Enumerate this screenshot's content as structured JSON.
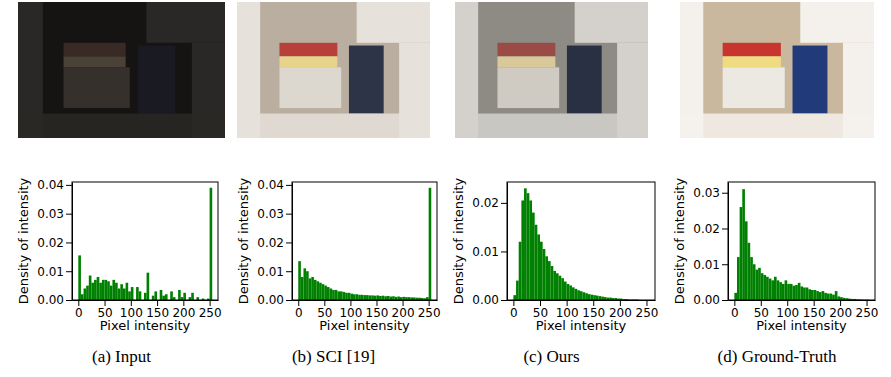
{
  "chart_data": [
    {
      "type": "histogram",
      "title": "(a) Input",
      "x_label": "Pixel intensity",
      "y_label": "Density of intensity",
      "color": "#008000",
      "bins": [
        0,
        5,
        10,
        15,
        20,
        25,
        30,
        35,
        40,
        45,
        50,
        55,
        60,
        65,
        70,
        75,
        80,
        85,
        90,
        95,
        100,
        105,
        110,
        115,
        120,
        125,
        130,
        135,
        140,
        145,
        150,
        155,
        160,
        165,
        170,
        175,
        180,
        185,
        190,
        195,
        200,
        205,
        210,
        215,
        220,
        225,
        230,
        235,
        240,
        245,
        250,
        255
      ],
      "values": [
        0.0155,
        0.002,
        0.004,
        0.005,
        0.0085,
        0.006,
        0.007,
        0.008,
        0.006,
        0.007,
        0.007,
        0.0065,
        0.005,
        0.007,
        0.006,
        0.004,
        0.0055,
        0.004,
        0.006,
        0.003,
        0.0045,
        0,
        0.0045,
        0.003,
        0,
        0.0025,
        0.0095,
        0,
        0.0015,
        0.003,
        0,
        0.0035,
        0.0015,
        0.002,
        0,
        0.003,
        0.001,
        0,
        0.0035,
        0.001,
        0.0025,
        0,
        0.001,
        0.0025,
        0,
        0.001,
        0,
        0.0005,
        0,
        0.0005,
        0.039
      ],
      "xlim": [
        -12,
        266
      ],
      "xticks": [
        0,
        50,
        100,
        150,
        200,
        250
      ],
      "ylim": [
        0,
        0.041
      ],
      "yticks": [
        {
          "value": 0,
          "label": "0.00"
        },
        {
          "value": 0.01,
          "label": "0.01"
        },
        {
          "value": 0.02,
          "label": "0.02"
        },
        {
          "value": 0.03,
          "label": "0.03"
        },
        {
          "value": 0.04,
          "label": "0.04"
        }
      ]
    },
    {
      "type": "histogram",
      "title": "(b) SCI [19]",
      "x_label": "Pixel intensity",
      "y_label": "Density of intensity",
      "color": "#008000",
      "bins": [
        0,
        5,
        10,
        15,
        20,
        25,
        30,
        35,
        40,
        45,
        50,
        55,
        60,
        65,
        70,
        75,
        80,
        85,
        90,
        95,
        100,
        105,
        110,
        115,
        120,
        125,
        130,
        135,
        140,
        145,
        150,
        155,
        160,
        165,
        170,
        175,
        180,
        185,
        190,
        195,
        200,
        205,
        210,
        215,
        220,
        225,
        230,
        235,
        240,
        245,
        250,
        255
      ],
      "values": [
        0.0135,
        0.008,
        0.011,
        0.01,
        0.0075,
        0.008,
        0.007,
        0.0065,
        0.006,
        0.0055,
        0.005,
        0.0045,
        0.004,
        0.0035,
        0.0035,
        0.003,
        0.003,
        0.0028,
        0.0025,
        0.0025,
        0.0022,
        0.002,
        0.002,
        0.0018,
        0.0018,
        0.0017,
        0.0017,
        0.0016,
        0.0016,
        0.0015,
        0.0016,
        0.0014,
        0.0015,
        0.0013,
        0.0014,
        0.0012,
        0.0013,
        0.0011,
        0.0012,
        0.001,
        0.0011,
        0.001,
        0.001,
        0.0009,
        0.0009,
        0.0008,
        0.0008,
        0.0007,
        0.0006,
        0.001,
        0.039
      ],
      "xlim": [
        -12,
        266
      ],
      "xticks": [
        0,
        50,
        100,
        150,
        200,
        250
      ],
      "ylim": [
        0,
        0.041
      ],
      "yticks": [
        {
          "value": 0,
          "label": "0.00"
        },
        {
          "value": 0.01,
          "label": "0.01"
        },
        {
          "value": 0.02,
          "label": "0.02"
        },
        {
          "value": 0.03,
          "label": "0.03"
        },
        {
          "value": 0.04,
          "label": "0.04"
        }
      ]
    },
    {
      "type": "histogram",
      "title": "(c) Ours",
      "x_label": "Pixel intensity",
      "y_label": "Density of intensity",
      "color": "#008000",
      "bins": [
        0,
        5,
        10,
        15,
        20,
        25,
        30,
        35,
        40,
        45,
        50,
        55,
        60,
        65,
        70,
        75,
        80,
        85,
        90,
        95,
        100,
        105,
        110,
        115,
        120,
        125,
        130,
        135,
        140,
        145,
        150,
        155,
        160,
        165,
        170,
        175,
        180,
        185,
        190,
        195,
        200,
        205,
        210,
        215,
        220,
        225,
        230,
        235,
        240,
        245,
        250,
        255
      ],
      "values": [
        0.001,
        0.004,
        0.012,
        0.0205,
        0.023,
        0.022,
        0.0205,
        0.018,
        0.0155,
        0.0135,
        0.012,
        0.0105,
        0.009,
        0.008,
        0.007,
        0.006,
        0.0055,
        0.005,
        0.0045,
        0.0038,
        0.0033,
        0.003,
        0.0026,
        0.0023,
        0.002,
        0.0018,
        0.0016,
        0.0014,
        0.0012,
        0.0011,
        0.001,
        0.0009,
        0.0008,
        0.0007,
        0.0006,
        0.0005,
        0.0005,
        0.0004,
        0.0004,
        0.0003,
        0.0003,
        0.0002,
        0.0002,
        0.0001,
        0.0001,
        0.0001,
        0.0001,
        0,
        0,
        0,
        0
      ],
      "xlim": [
        -12,
        266
      ],
      "xticks": [
        0,
        50,
        100,
        150,
        200,
        250
      ],
      "ylim": [
        0,
        0.0243
      ],
      "yticks": [
        {
          "value": 0,
          "label": "0.00"
        },
        {
          "value": 0.01,
          "label": "0.01"
        },
        {
          "value": 0.02,
          "label": "0.02"
        }
      ]
    },
    {
      "type": "histogram",
      "title": "(d) Ground-Truth",
      "x_label": "Pixel intensity",
      "y_label": "Density of intensity",
      "color": "#008000",
      "bins": [
        0,
        5,
        10,
        15,
        20,
        25,
        30,
        35,
        40,
        45,
        50,
        55,
        60,
        65,
        70,
        75,
        80,
        85,
        90,
        95,
        100,
        105,
        110,
        115,
        120,
        125,
        130,
        135,
        140,
        145,
        150,
        155,
        160,
        165,
        170,
        175,
        180,
        185,
        190,
        195,
        200,
        205,
        210,
        215,
        220,
        225,
        230,
        235,
        240,
        245,
        250,
        255
      ],
      "values": [
        0.002,
        0.012,
        0.026,
        0.031,
        0.022,
        0.016,
        0.012,
        0.01,
        0.0085,
        0.009,
        0.0075,
        0.007,
        0.0065,
        0.006,
        0.0055,
        0.0065,
        0.0055,
        0.005,
        0.0045,
        0.0055,
        0.0045,
        0.0045,
        0.004,
        0.0042,
        0.0048,
        0.0038,
        0.0035,
        0.0035,
        0.003,
        0.0028,
        0.0028,
        0.0025,
        0.0022,
        0.0025,
        0.002,
        0.0018,
        0.0018,
        0.0015,
        0.0025,
        0.001,
        0.0008,
        0.0006,
        0.0005,
        0.0004,
        0.0003,
        0.0003,
        0.0002,
        0.0002,
        0.0001,
        0.0001,
        0.0001
      ],
      "xlim": [
        -12,
        266
      ],
      "xticks": [
        0,
        50,
        100,
        150,
        200,
        250
      ],
      "ylim": [
        0,
        0.033
      ],
      "yticks": [
        {
          "value": 0,
          "label": "0.00"
        },
        {
          "value": 0.01,
          "label": "0.01"
        },
        {
          "value": 0.02,
          "label": "0.02"
        },
        {
          "value": 0.03,
          "label": "0.03"
        }
      ]
    }
  ]
}
